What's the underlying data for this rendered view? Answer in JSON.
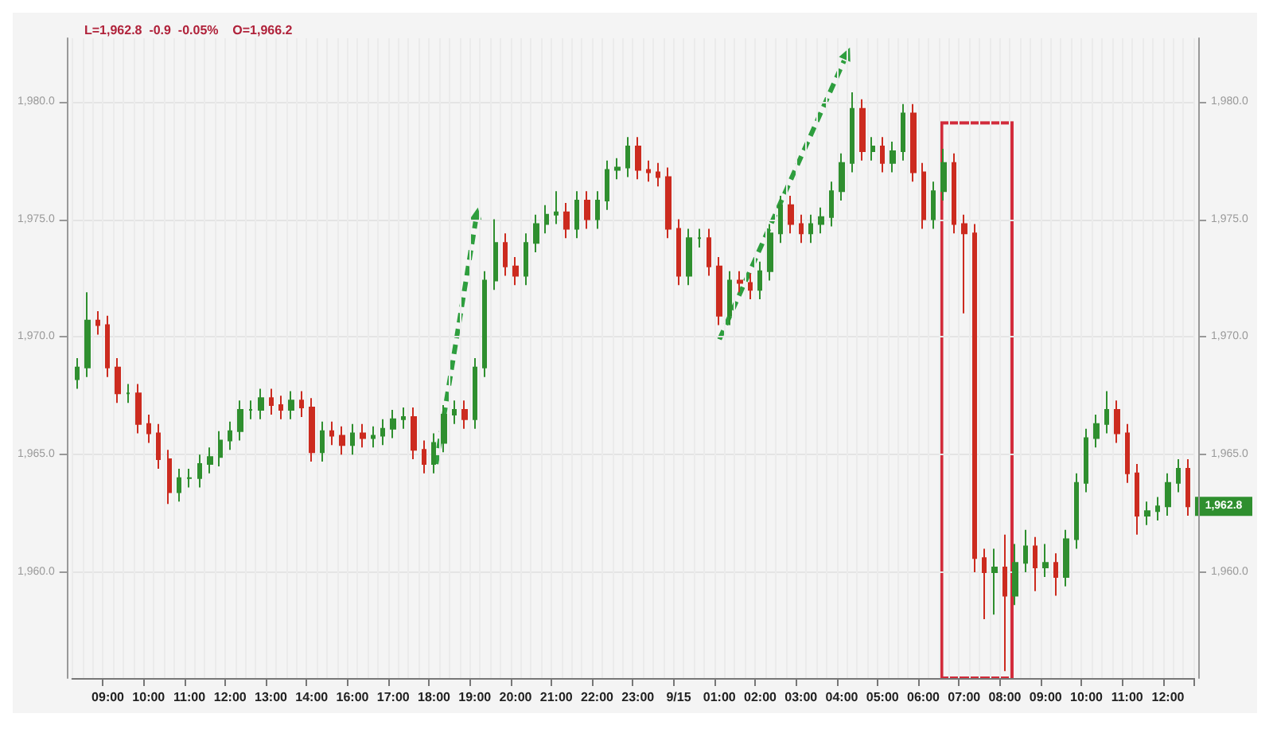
{
  "chart_data": {
    "type": "candlestick",
    "annotations": [
      "L=1,962.8  -0.9  -0.05%",
      "O=1,966.2",
      {
        "text": "1,962.8",
        "y": 1962.8
      }
    ],
    "categories": [
      null,
      null,
      null,
      "09:00",
      null,
      null,
      null,
      "10:00",
      null,
      null,
      null,
      "11:00",
      null,
      null,
      null,
      "12:00",
      null,
      null,
      null,
      "13:00",
      null,
      null,
      null,
      "14:00",
      null,
      null,
      null,
      "16:00",
      null,
      null,
      null,
      "17:00",
      null,
      null,
      null,
      "18:00",
      null,
      null,
      null,
      "19:00",
      null,
      null,
      null,
      "20:00",
      null,
      null,
      null,
      "21:00",
      null,
      null,
      null,
      "22:00",
      null,
      null,
      null,
      "23:00",
      null,
      null,
      null,
      "9/15",
      null,
      null,
      null,
      "01:00",
      null,
      null,
      null,
      "02:00",
      null,
      null,
      null,
      "03:00",
      null,
      null,
      null,
      "04:00",
      null,
      null,
      null,
      "05:00",
      null,
      null,
      null,
      "06:00",
      null,
      null,
      null,
      "07:00",
      null,
      null,
      null,
      "08:00",
      null,
      null,
      null,
      "09:00",
      null,
      null,
      null,
      "10:00",
      null,
      null,
      null,
      "11:00",
      null,
      null,
      null,
      "12:00",
      null,
      null
    ],
    "ohlc": [
      [
        1968.2,
        1969.1,
        1967.8,
        1968.7
      ],
      [
        1968.7,
        1971.9,
        1968.3,
        1970.7
      ],
      [
        1970.7,
        1971.1,
        1970.1,
        1970.5
      ],
      [
        1970.5,
        1970.9,
        1968.3,
        1968.7
      ],
      [
        1968.7,
        1969.1,
        1967.2,
        1967.6
      ],
      [
        1967.6,
        1968.0,
        1967.2,
        1967.6
      ],
      [
        1967.6,
        1968.0,
        1965.9,
        1966.3
      ],
      [
        1966.3,
        1966.7,
        1965.5,
        1965.9
      ],
      [
        1965.9,
        1966.3,
        1964.4,
        1964.8
      ],
      [
        1964.8,
        1965.2,
        1962.9,
        1963.4
      ],
      [
        1963.4,
        1964.4,
        1963.0,
        1964.0
      ],
      [
        1964.0,
        1964.4,
        1963.6,
        1964.0
      ],
      [
        1964.0,
        1965.0,
        1963.6,
        1964.6
      ],
      [
        1964.6,
        1965.3,
        1964.2,
        1964.9
      ],
      [
        1964.9,
        1966.0,
        1964.5,
        1965.6
      ],
      [
        1965.6,
        1966.4,
        1965.2,
        1966.0
      ],
      [
        1966.0,
        1967.3,
        1965.6,
        1966.9
      ],
      [
        1966.9,
        1967.3,
        1966.5,
        1966.9
      ],
      [
        1966.9,
        1967.8,
        1966.5,
        1967.4
      ],
      [
        1967.4,
        1967.8,
        1966.7,
        1967.1
      ],
      [
        1967.1,
        1967.5,
        1966.5,
        1966.9
      ],
      [
        1966.9,
        1967.7,
        1966.5,
        1967.3
      ],
      [
        1967.3,
        1967.7,
        1966.6,
        1967.0
      ],
      [
        1967.0,
        1967.4,
        1964.7,
        1965.1
      ],
      [
        1965.1,
        1966.4,
        1964.7,
        1966.0
      ],
      [
        1966.0,
        1966.4,
        1965.4,
        1965.8
      ],
      [
        1965.8,
        1966.2,
        1965.0,
        1965.4
      ],
      [
        1965.4,
        1966.3,
        1965.0,
        1965.9
      ],
      [
        1965.9,
        1966.3,
        1965.3,
        1965.7
      ],
      [
        1965.7,
        1966.2,
        1965.3,
        1965.8
      ],
      [
        1965.8,
        1966.5,
        1965.4,
        1966.1
      ],
      [
        1966.1,
        1966.9,
        1965.7,
        1966.5
      ],
      [
        1966.5,
        1967.0,
        1966.1,
        1966.6
      ],
      [
        1966.6,
        1967.0,
        1964.8,
        1965.2
      ],
      [
        1965.2,
        1965.6,
        1964.2,
        1964.6
      ],
      [
        1964.6,
        1965.9,
        1964.2,
        1965.5
      ],
      [
        1965.5,
        1967.1,
        1965.1,
        1966.7
      ],
      [
        1966.7,
        1967.3,
        1966.3,
        1966.9
      ],
      [
        1966.9,
        1967.3,
        1966.1,
        1966.5
      ],
      [
        1966.5,
        1969.1,
        1966.1,
        1968.7
      ],
      [
        1968.7,
        1972.8,
        1968.3,
        1972.4
      ],
      [
        1972.4,
        1975.0,
        1972.0,
        1974.0
      ],
      [
        1974.0,
        1974.4,
        1972.6,
        1973.0
      ],
      [
        1973.0,
        1973.4,
        1972.2,
        1972.6
      ],
      [
        1972.6,
        1974.4,
        1972.2,
        1974.0
      ],
      [
        1974.0,
        1975.2,
        1973.6,
        1974.8
      ],
      [
        1974.8,
        1975.6,
        1974.4,
        1975.2
      ],
      [
        1975.2,
        1976.2,
        1974.8,
        1975.3
      ],
      [
        1975.3,
        1975.7,
        1974.2,
        1974.6
      ],
      [
        1974.6,
        1976.2,
        1974.2,
        1975.8
      ],
      [
        1975.8,
        1976.2,
        1974.6,
        1975.0
      ],
      [
        1975.0,
        1976.2,
        1974.6,
        1975.8
      ],
      [
        1975.8,
        1977.5,
        1975.4,
        1977.1
      ],
      [
        1977.1,
        1977.6,
        1976.7,
        1977.2
      ],
      [
        1977.2,
        1978.5,
        1976.8,
        1978.1
      ],
      [
        1978.1,
        1978.5,
        1976.7,
        1977.1
      ],
      [
        1977.1,
        1977.5,
        1976.6,
        1977.0
      ],
      [
        1977.0,
        1977.4,
        1976.4,
        1976.8
      ],
      [
        1976.8,
        1977.2,
        1974.2,
        1974.6
      ],
      [
        1974.6,
        1975.0,
        1972.2,
        1972.6
      ],
      [
        1972.6,
        1974.6,
        1972.2,
        1974.2
      ],
      [
        1974.2,
        1974.6,
        1973.8,
        1974.2
      ],
      [
        1974.2,
        1974.6,
        1972.6,
        1973.0
      ],
      [
        1973.0,
        1973.4,
        1970.5,
        1970.9
      ],
      [
        1970.9,
        1972.8,
        1970.5,
        1972.4
      ],
      [
        1972.4,
        1972.8,
        1971.9,
        1972.3
      ],
      [
        1972.3,
        1972.7,
        1971.6,
        1972.0
      ],
      [
        1972.0,
        1973.2,
        1971.6,
        1972.8
      ],
      [
        1972.8,
        1974.8,
        1972.4,
        1974.4
      ],
      [
        1974.4,
        1976.0,
        1974.0,
        1975.6
      ],
      [
        1975.6,
        1976.0,
        1974.4,
        1974.8
      ],
      [
        1974.8,
        1975.2,
        1974.0,
        1974.4
      ],
      [
        1974.4,
        1975.2,
        1974.0,
        1974.8
      ],
      [
        1974.8,
        1975.5,
        1974.4,
        1975.1
      ],
      [
        1975.1,
        1976.6,
        1974.7,
        1976.2
      ],
      [
        1976.2,
        1977.8,
        1975.8,
        1977.4
      ],
      [
        1977.4,
        1980.4,
        1977.0,
        1979.7
      ],
      [
        1979.7,
        1980.1,
        1977.5,
        1977.9
      ],
      [
        1977.9,
        1978.5,
        1977.5,
        1978.1
      ],
      [
        1978.1,
        1978.5,
        1977.0,
        1977.4
      ],
      [
        1977.4,
        1978.3,
        1977.0,
        1977.9
      ],
      [
        1977.9,
        1979.9,
        1977.5,
        1979.5
      ],
      [
        1979.5,
        1979.9,
        1976.6,
        1977.0
      ],
      [
        1977.0,
        1977.4,
        1974.6,
        1975.0
      ],
      [
        1975.0,
        1976.6,
        1974.6,
        1976.2
      ],
      [
        1976.2,
        1978.0,
        1975.8,
        1977.4
      ],
      [
        1977.4,
        1977.8,
        1974.4,
        1974.8
      ],
      [
        1974.8,
        1975.2,
        1971.0,
        1974.4
      ],
      [
        1974.4,
        1974.8,
        1960.0,
        1960.6
      ],
      [
        1960.6,
        1961.0,
        1958.0,
        1960.0
      ],
      [
        1960.0,
        1961.0,
        1958.2,
        1960.2
      ],
      [
        1960.2,
        1961.6,
        1955.8,
        1959.0
      ],
      [
        1959.0,
        1961.2,
        1958.6,
        1960.4
      ],
      [
        1960.4,
        1961.8,
        1960.0,
        1961.1
      ],
      [
        1961.1,
        1961.5,
        1959.2,
        1960.2
      ],
      [
        1960.2,
        1961.2,
        1959.8,
        1960.4
      ],
      [
        1960.4,
        1960.8,
        1959.0,
        1959.8
      ],
      [
        1959.8,
        1961.8,
        1959.4,
        1961.4
      ],
      [
        1961.4,
        1964.2,
        1961.0,
        1963.8
      ],
      [
        1963.8,
        1966.1,
        1963.4,
        1965.7
      ],
      [
        1965.7,
        1966.7,
        1965.3,
        1966.3
      ],
      [
        1966.3,
        1967.7,
        1965.9,
        1966.9
      ],
      [
        1966.9,
        1967.3,
        1965.5,
        1965.9
      ],
      [
        1965.9,
        1966.3,
        1963.8,
        1964.2
      ],
      [
        1964.2,
        1964.6,
        1961.6,
        1962.4
      ],
      [
        1962.4,
        1963.0,
        1962.0,
        1962.6
      ],
      [
        1962.6,
        1963.2,
        1962.2,
        1962.8
      ],
      [
        1962.8,
        1964.2,
        1962.4,
        1963.8
      ],
      [
        1963.8,
        1964.8,
        1963.4,
        1964.4
      ],
      [
        1964.4,
        1964.8,
        1962.4,
        1962.8
      ]
    ],
    "ylim": [
      1955.5,
      1982.7
    ],
    "yticks": [
      {
        "value": 1960,
        "label": "1,960.0"
      },
      {
        "value": 1965,
        "label": "1,965.0"
      },
      {
        "value": 1970,
        "label": "1,970.0"
      },
      {
        "value": 1975,
        "label": "1,975.0"
      },
      {
        "value": 1980,
        "label": "1,980.0"
      }
    ],
    "y2lim": [
      1955.5,
      1982.7
    ],
    "y2ticks": [
      {
        "value": 1960,
        "label": "1,960.0"
      },
      {
        "value": 1965,
        "label": "1,965.0"
      },
      {
        "value": 1970,
        "label": "1,970.0"
      },
      {
        "value": 1975,
        "label": "1,975.0"
      },
      {
        "value": 1980,
        "label": "1,980.0"
      }
    ],
    "grid": true
  }
}
